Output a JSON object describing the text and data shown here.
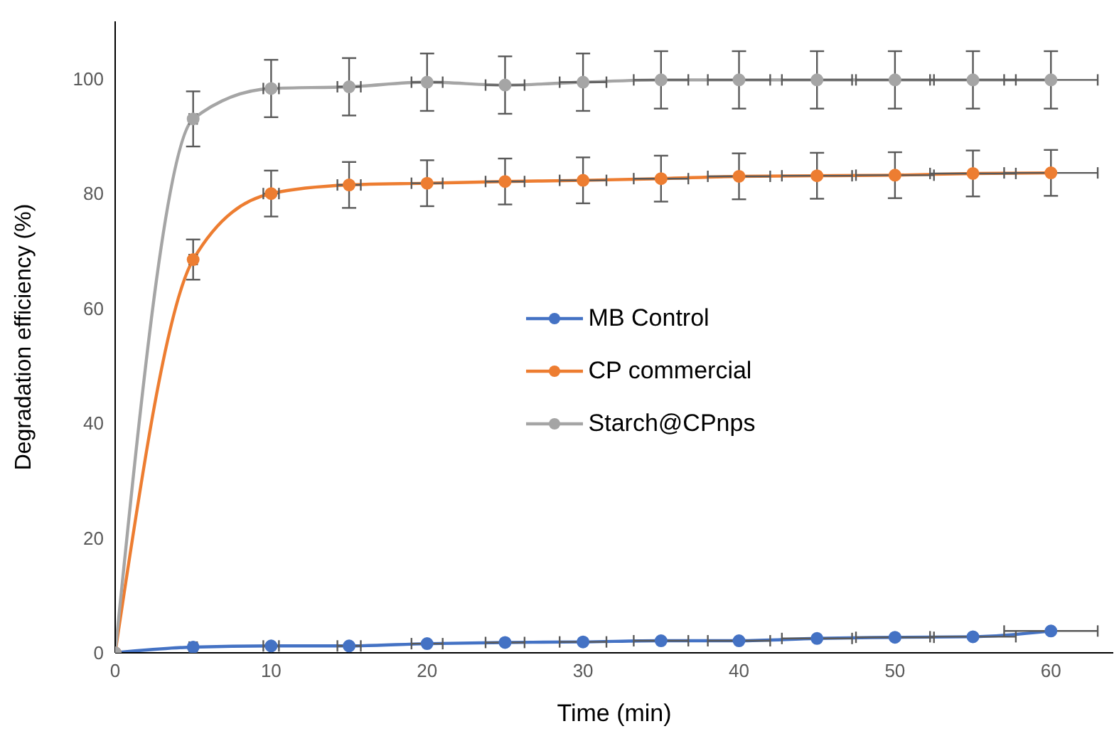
{
  "chart_data": {
    "type": "line",
    "xlabel": "Time (min)",
    "ylabel": "Degradation efficiency (%)",
    "x": [
      0,
      5,
      10,
      15,
      20,
      25,
      30,
      35,
      40,
      45,
      50,
      55,
      60
    ],
    "xlim": [
      0,
      64
    ],
    "xticks": [
      0,
      10,
      20,
      30,
      40,
      50,
      60
    ],
    "ylim": [
      0,
      110
    ],
    "yticks": [
      0,
      20,
      40,
      60,
      80,
      100
    ],
    "grid": false,
    "legend": "center",
    "marker": "circle",
    "line_style": "solid",
    "series": [
      {
        "name": "MB Control",
        "color": "#4472c4",
        "values": [
          0,
          1,
          1.2,
          1.2,
          1.6,
          1.8,
          1.9,
          2.1,
          2.1,
          2.5,
          2.7,
          2.8,
          3.8
        ],
        "xerrors": [
          null,
          0.25,
          0.5,
          0.75,
          1,
          1.25,
          1.5,
          1.75,
          2,
          2.25,
          2.5,
          2.75,
          3
        ]
      },
      {
        "name": "CP commercial",
        "color": "#ed7d31",
        "values": [
          0,
          68.5,
          80,
          81.5,
          81.8,
          82.1,
          82.3,
          82.6,
          83,
          83.1,
          83.2,
          83.5,
          83.6
        ],
        "errors": [
          null,
          3.5,
          4,
          4,
          4,
          4,
          4,
          4,
          4,
          4,
          4,
          4,
          4
        ],
        "xerrors": [
          null,
          0.25,
          0.5,
          0.75,
          1,
          1.25,
          1.5,
          1.75,
          2,
          2.25,
          2.5,
          2.75,
          3
        ]
      },
      {
        "name": "Starch@CPnps",
        "color": "#a5a5a5",
        "values": [
          0,
          93,
          98.3,
          98.6,
          99.4,
          98.9,
          99.4,
          99.8,
          99.8,
          99.8,
          99.8,
          99.8,
          99.8
        ],
        "errors": [
          null,
          4.8,
          5,
          5,
          5,
          5,
          5,
          5,
          5,
          5,
          5,
          5,
          5
        ],
        "xerrors": [
          null,
          0.25,
          0.5,
          0.75,
          1,
          1.25,
          1.5,
          1.75,
          2,
          2.25,
          2.5,
          2.75,
          3
        ]
      }
    ]
  }
}
